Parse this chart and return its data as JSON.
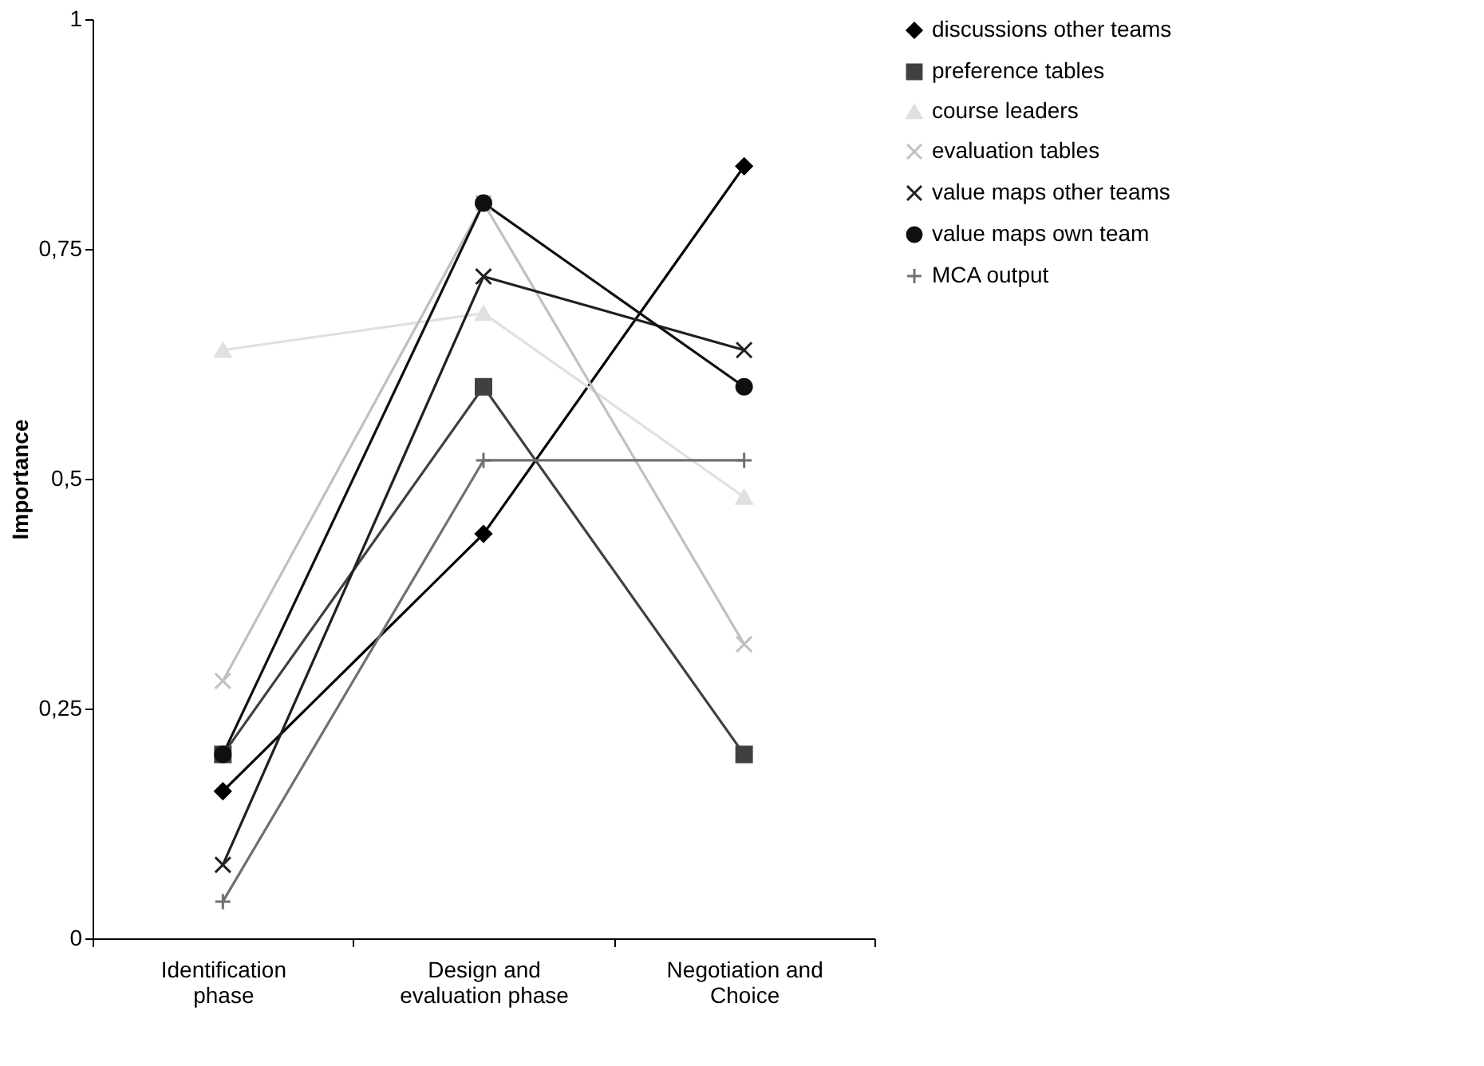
{
  "chart_data": {
    "type": "line",
    "ylabel": "Importance",
    "categories": [
      "Identification phase",
      "Design and evaluation phase",
      "Negotiation and Choice"
    ],
    "series": [
      {
        "name": "discussions other teams",
        "color": "#000000",
        "marker": "diamond",
        "values": [
          0.16,
          0.44,
          0.84
        ]
      },
      {
        "name": "preference tables",
        "color": "#404040",
        "marker": "square",
        "values": [
          0.2,
          0.6,
          0.2
        ]
      },
      {
        "name": "course leaders",
        "color": "#e0e0e0",
        "marker": "triangle",
        "values": [
          0.64,
          0.68,
          0.48
        ]
      },
      {
        "name": "evaluation tables",
        "color": "#c0c0c0",
        "marker": "cross",
        "values": [
          0.28,
          0.8,
          0.32
        ]
      },
      {
        "name": "value maps other teams",
        "color": "#202020",
        "marker": "cross",
        "values": [
          0.08,
          0.72,
          0.64
        ]
      },
      {
        "name": "value maps own team",
        "color": "#101010",
        "marker": "circle",
        "values": [
          0.2,
          0.8,
          0.6
        ]
      },
      {
        "name": "MCA output",
        "color": "#707070",
        "marker": "plus",
        "values": [
          0.04,
          0.52,
          0.52
        ]
      }
    ],
    "ylim": [
      0,
      1
    ],
    "yticks": [
      0,
      {
        "value": 0.25,
        "label": "0,25"
      },
      {
        "value": 0.5,
        "label": "0,5"
      },
      {
        "value": 0.75,
        "label": "0,75"
      },
      1
    ],
    "grid": false,
    "legend": "right",
    "line_style": "solid"
  }
}
